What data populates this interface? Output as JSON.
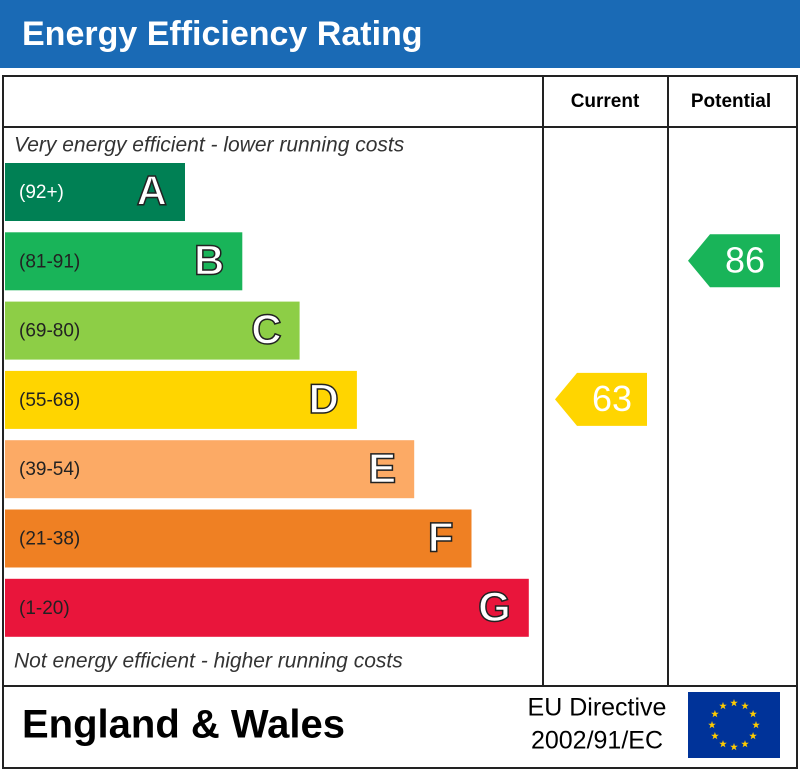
{
  "title": "Energy Efficiency Rating",
  "headers": {
    "current": "Current",
    "potential": "Potential"
  },
  "top_note": "Very energy efficient - lower running costs",
  "bottom_note": "Not energy efficient - higher running costs",
  "bands": [
    {
      "range": "(92+)",
      "letter": "A",
      "color": "#008054"
    },
    {
      "range": "(81-91)",
      "letter": "B",
      "color": "#19b459"
    },
    {
      "range": "(69-80)",
      "letter": "C",
      "color": "#8dce46"
    },
    {
      "range": "(55-68)",
      "letter": "D",
      "color": "#ffd500"
    },
    {
      "range": "(39-54)",
      "letter": "E",
      "color": "#fcaa65"
    },
    {
      "range": "(21-38)",
      "letter": "F",
      "color": "#ef8023"
    },
    {
      "range": "(1-20)",
      "letter": "G",
      "color": "#e9153b"
    }
  ],
  "current": 63,
  "potential": 86,
  "footer": {
    "region": "England & Wales",
    "directive_line1": "EU Directive",
    "directive_line2": "2002/91/EC"
  }
}
